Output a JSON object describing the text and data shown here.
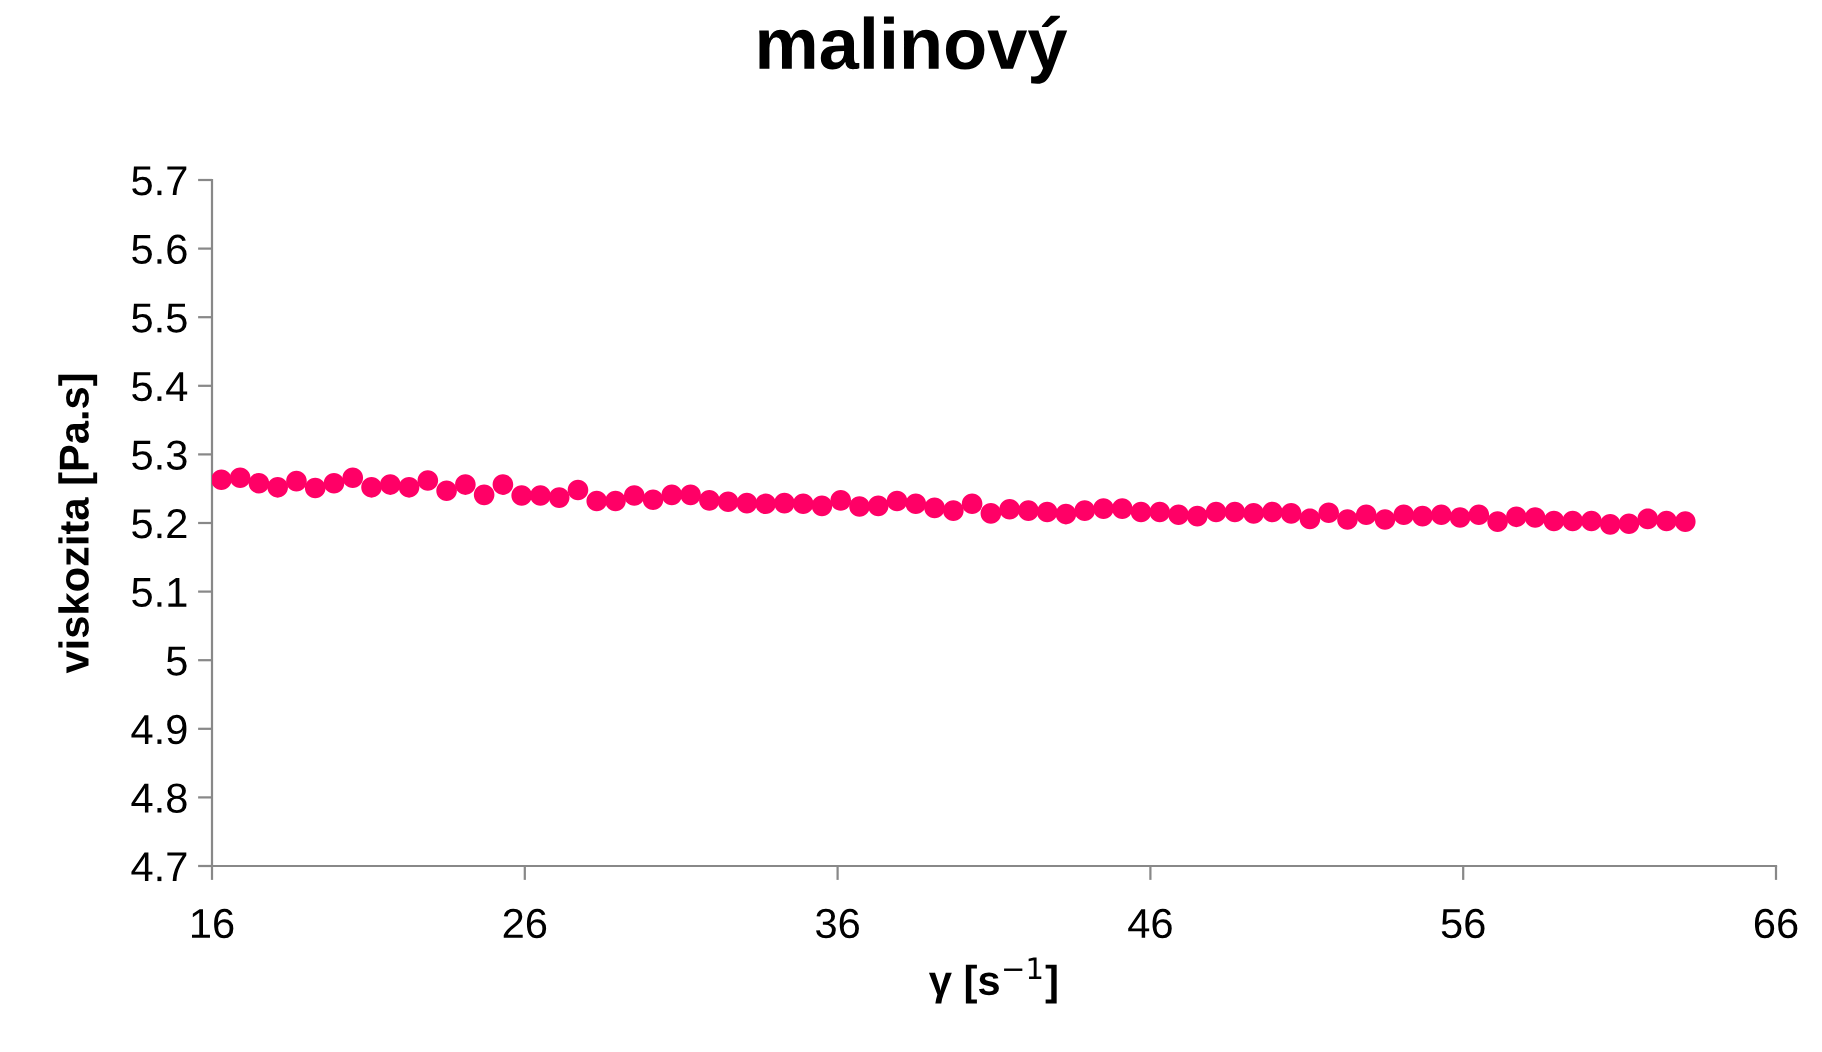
{
  "chart_data": {
    "type": "scatter",
    "title": "malinový",
    "xlabel": "γ [s$^{−1}$]",
    "ylabel": "viskozita [Pa.s]",
    "x": [
      16.3,
      16.9,
      17.5,
      18.1,
      18.7,
      19.3,
      19.9,
      20.5,
      21.1,
      21.7,
      22.3,
      22.9,
      23.5,
      24.1,
      24.7,
      25.3,
      25.9,
      26.5,
      27.1,
      27.7,
      28.3,
      28.9,
      29.5,
      30.1,
      30.7,
      31.3,
      31.9,
      32.5,
      33.1,
      33.7,
      34.3,
      34.9,
      35.5,
      36.1,
      36.7,
      37.3,
      37.9,
      38.5,
      39.1,
      39.7,
      40.3,
      40.9,
      41.5,
      42.1,
      42.7,
      43.3,
      43.9,
      44.5,
      45.1,
      45.7,
      46.3,
      46.9,
      47.5,
      48.1,
      48.7,
      49.3,
      49.9,
      50.5,
      51.1,
      51.7,
      52.3,
      52.9,
      53.5,
      54.1,
      54.7,
      55.3,
      55.9,
      56.5,
      57.1,
      57.7,
      58.3,
      58.9,
      59.5,
      60.1,
      60.7,
      61.3,
      61.9,
      62.5,
      63.1
    ],
    "values": [
      5.263,
      5.266,
      5.258,
      5.252,
      5.261,
      5.251,
      5.258,
      5.266,
      5.252,
      5.256,
      5.252,
      5.262,
      5.247,
      5.256,
      5.241,
      5.256,
      5.24,
      5.24,
      5.237,
      5.248,
      5.232,
      5.232,
      5.24,
      5.234,
      5.241,
      5.241,
      5.233,
      5.231,
      5.229,
      5.228,
      5.229,
      5.228,
      5.225,
      5.233,
      5.224,
      5.225,
      5.232,
      5.228,
      5.222,
      5.218,
      5.228,
      5.214,
      5.22,
      5.218,
      5.216,
      5.213,
      5.218,
      5.221,
      5.221,
      5.216,
      5.216,
      5.212,
      5.21,
      5.216,
      5.216,
      5.214,
      5.216,
      5.214,
      5.206,
      5.215,
      5.205,
      5.212,
      5.205,
      5.212,
      5.21,
      5.212,
      5.208,
      5.212,
      5.202,
      5.209,
      5.208,
      5.203,
      5.203,
      5.203,
      5.198,
      5.199,
      5.206,
      5.203,
      5.202
    ],
    "color": "#ff0066",
    "marker": "circle",
    "xlim": [
      16,
      66
    ],
    "xticks": [
      16,
      26,
      36,
      46,
      56,
      66
    ],
    "ylim": [
      4.7,
      5.7
    ],
    "yticks": [
      4.7,
      4.8,
      4.9,
      5,
      5.1,
      5.2,
      5.3,
      5.4,
      5.5,
      5.6,
      5.7
    ],
    "grid": false,
    "legend": false
  }
}
